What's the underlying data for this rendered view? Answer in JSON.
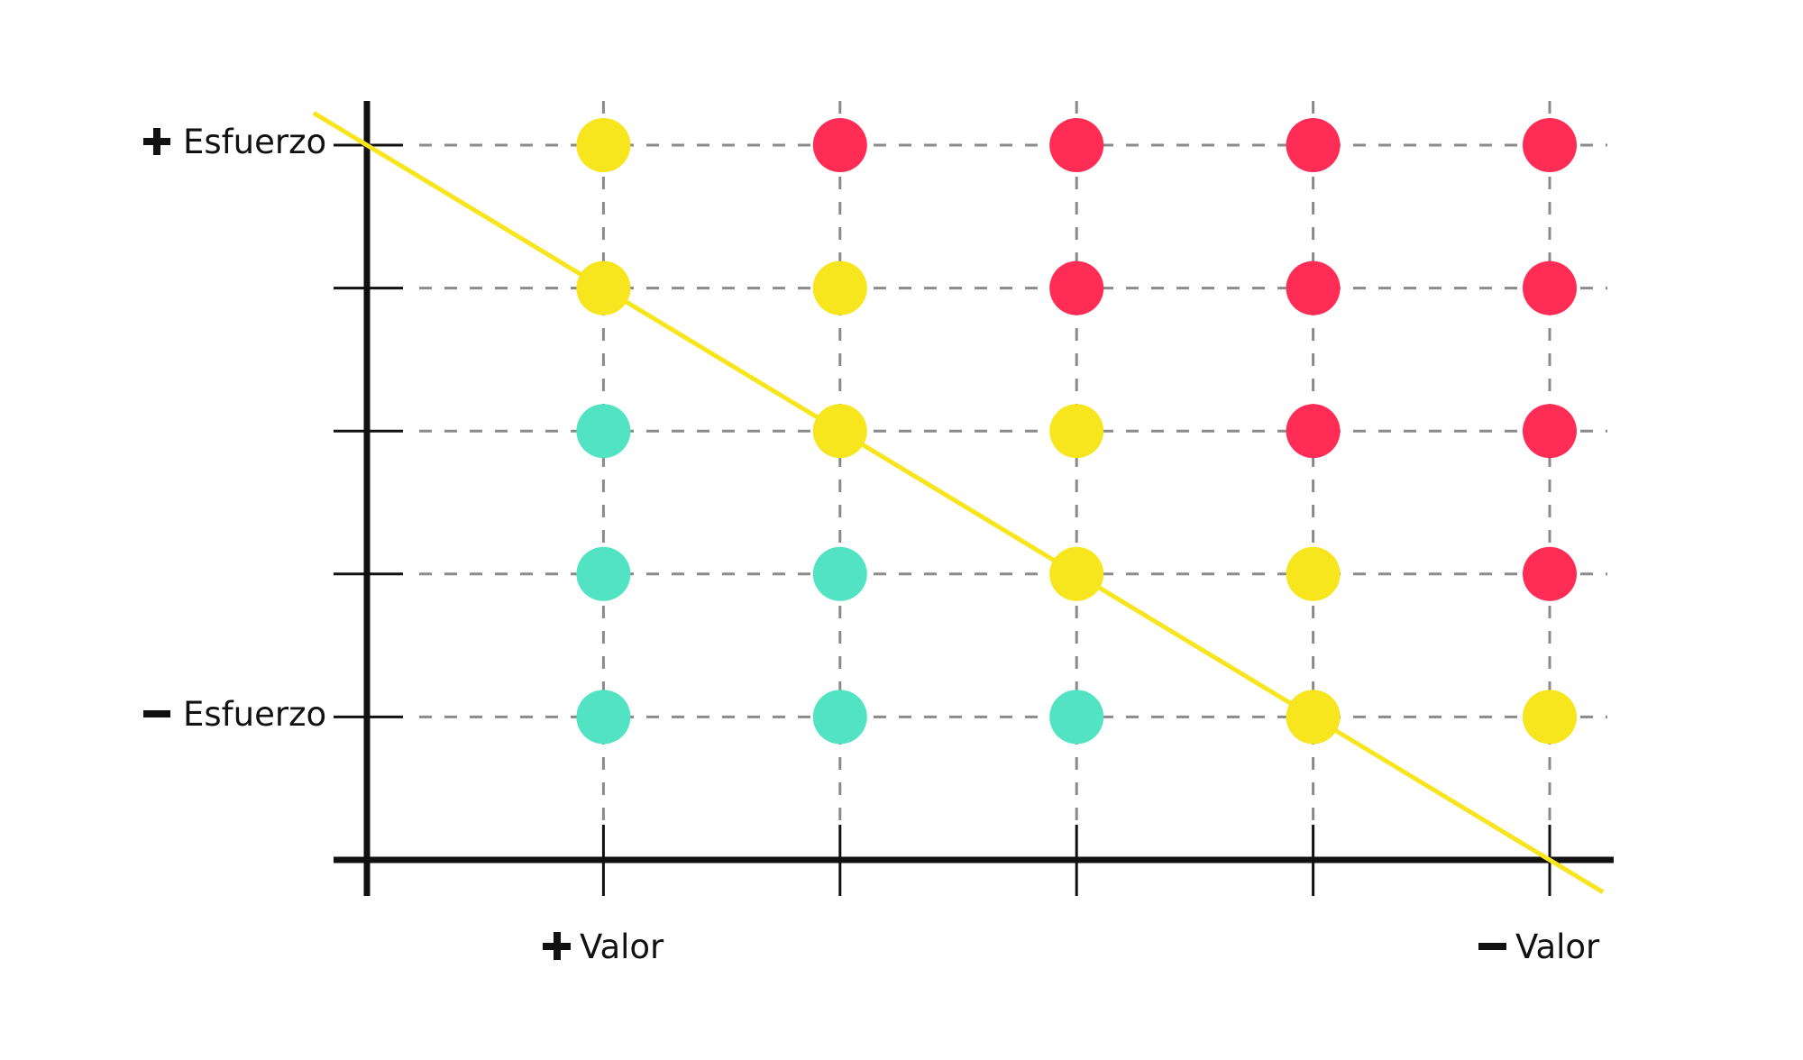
{
  "chart_data": {
    "type": "scatter",
    "x_levels": [
      1,
      2,
      3,
      4,
      5
    ],
    "y_levels": [
      1,
      2,
      3,
      4,
      5
    ],
    "x_labels": {
      "plus": "Valor",
      "minus": "Valor"
    },
    "y_labels": {
      "plus": "Esfuerzo",
      "minus": "Esfuerzo"
    },
    "grid": true,
    "colors": {
      "teal": "#52E3C2",
      "yellow": "#F7E51E",
      "red": "#FF2D55",
      "axis": "#111111",
      "grid": "#8a8a8a"
    },
    "points": [
      {
        "x": 1,
        "y": 5,
        "color": "yellow"
      },
      {
        "x": 2,
        "y": 5,
        "color": "red"
      },
      {
        "x": 3,
        "y": 5,
        "color": "red"
      },
      {
        "x": 4,
        "y": 5,
        "color": "red"
      },
      {
        "x": 5,
        "y": 5,
        "color": "red"
      },
      {
        "x": 1,
        "y": 4,
        "color": "yellow"
      },
      {
        "x": 2,
        "y": 4,
        "color": "yellow"
      },
      {
        "x": 3,
        "y": 4,
        "color": "red"
      },
      {
        "x": 4,
        "y": 4,
        "color": "red"
      },
      {
        "x": 5,
        "y": 4,
        "color": "red"
      },
      {
        "x": 1,
        "y": 3,
        "color": "teal"
      },
      {
        "x": 2,
        "y": 3,
        "color": "yellow"
      },
      {
        "x": 3,
        "y": 3,
        "color": "yellow"
      },
      {
        "x": 4,
        "y": 3,
        "color": "red"
      },
      {
        "x": 5,
        "y": 3,
        "color": "red"
      },
      {
        "x": 1,
        "y": 2,
        "color": "teal"
      },
      {
        "x": 2,
        "y": 2,
        "color": "teal"
      },
      {
        "x": 3,
        "y": 2,
        "color": "yellow"
      },
      {
        "x": 4,
        "y": 2,
        "color": "yellow"
      },
      {
        "x": 5,
        "y": 2,
        "color": "red"
      },
      {
        "x": 1,
        "y": 1,
        "color": "teal"
      },
      {
        "x": 2,
        "y": 1,
        "color": "teal"
      },
      {
        "x": 3,
        "y": 1,
        "color": "teal"
      },
      {
        "x": 4,
        "y": 1,
        "color": "yellow"
      },
      {
        "x": 5,
        "y": 1,
        "color": "yellow"
      }
    ],
    "diagonal": {
      "color": "yellow",
      "from": [
        0,
        5
      ],
      "to": [
        5,
        0
      ]
    }
  }
}
